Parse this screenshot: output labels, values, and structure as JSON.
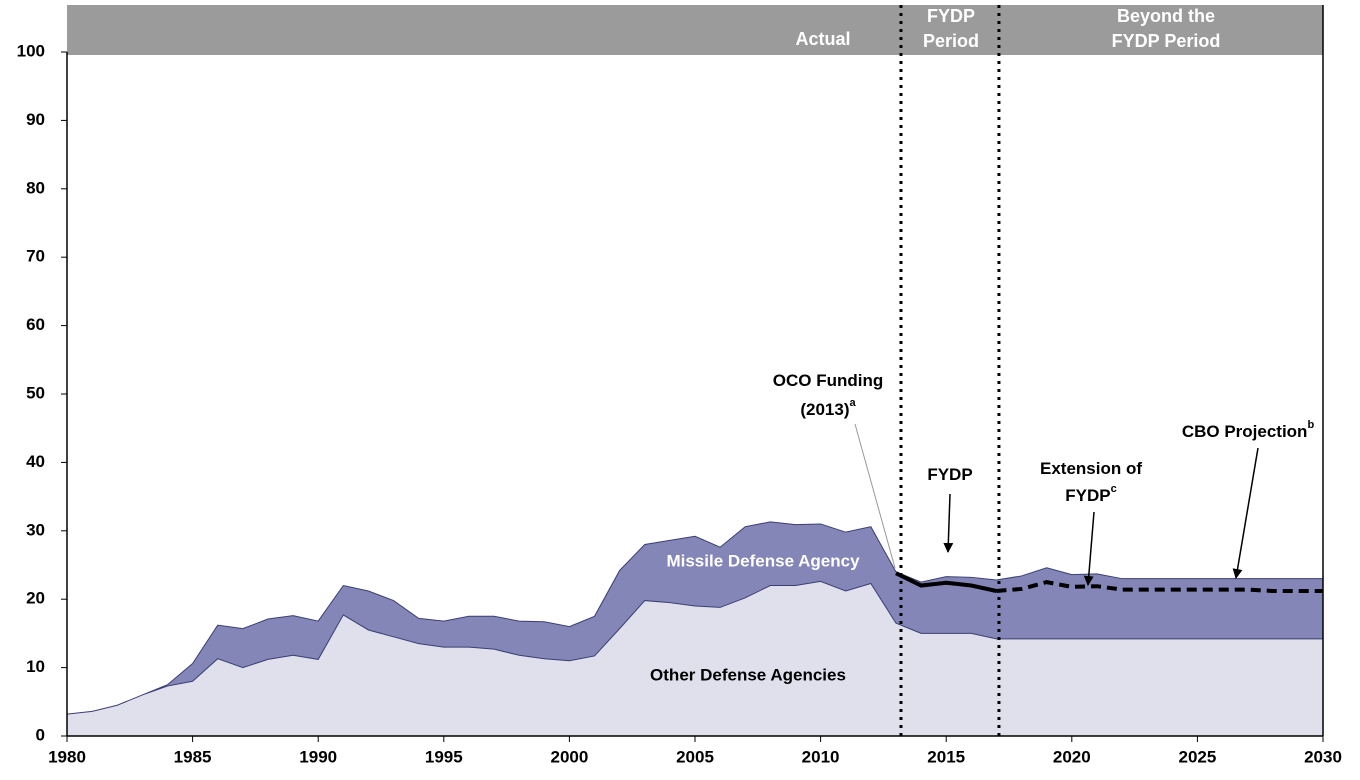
{
  "chart_data": {
    "type": "stacked_area",
    "x": [
      1980,
      1981,
      1982,
      1983,
      1984,
      1985,
      1986,
      1987,
      1988,
      1989,
      1990,
      1991,
      1992,
      1993,
      1994,
      1995,
      1996,
      1997,
      1998,
      1999,
      2000,
      2001,
      2002,
      2003,
      2004,
      2005,
      2006,
      2007,
      2008,
      2009,
      2010,
      2011,
      2012,
      2013,
      2014,
      2015,
      2016,
      2017,
      2018,
      2019,
      2020,
      2021,
      2022,
      2023,
      2024,
      2025,
      2026,
      2027,
      2028,
      2029,
      2030
    ],
    "series": [
      {
        "name": "Other Defense Agencies",
        "color": "#dfe0ec",
        "values": [
          3.2,
          3.6,
          4.5,
          6,
          7.3,
          8,
          11.3,
          10,
          11.2,
          11.8,
          11.2,
          17.7,
          15.5,
          14.5,
          13.5,
          13,
          13,
          12.7,
          11.8,
          11.3,
          11,
          11.7,
          15.7,
          19.8,
          19.5,
          19,
          18.8,
          20.2,
          22,
          22,
          22.6,
          21.2,
          22.3,
          16.5,
          15,
          15,
          15,
          14.2,
          14.2,
          14.2,
          14.2,
          14.2,
          14.2,
          14.2,
          14.2,
          14.2,
          14.2,
          14.2,
          14.2,
          14.2,
          14.2
        ]
      },
      {
        "name": "Missile Defense Agency",
        "color": "#8386b6",
        "values": [
          0,
          0,
          0,
          0,
          0.2,
          2.6,
          4.9,
          5.7,
          5.9,
          5.8,
          5.6,
          4.3,
          5.7,
          5.3,
          3.7,
          3.8,
          4.5,
          4.8,
          5,
          5.4,
          5,
          5.8,
          8.5,
          8.2,
          9.1,
          10.2,
          8.8,
          10.4,
          9.3,
          8.9,
          8.4,
          8.6,
          8.3,
          7.5,
          7.5,
          8.3,
          8.2,
          8.6,
          9.2,
          10.4,
          9.4,
          9.5,
          8.8,
          8.8,
          8.8,
          8.8,
          8.8,
          8.8,
          8.8,
          8.8,
          8.8
        ]
      }
    ],
    "lines": [
      {
        "style": "solid",
        "x": [
          2013,
          2014,
          2015,
          2016,
          2017
        ],
        "values": [
          23.8,
          22,
          22.4,
          22,
          21.2
        ]
      },
      {
        "style": "dashed",
        "x": [
          2017,
          2018,
          2019,
          2020,
          2021,
          2022,
          2023,
          2024,
          2025,
          2026,
          2027,
          2028,
          2029,
          2030
        ],
        "values": [
          21.2,
          21.5,
          22.5,
          21.8,
          21.9,
          21.4,
          21.4,
          21.4,
          21.4,
          21.4,
          21.4,
          21.2,
          21.2,
          21.2
        ]
      }
    ],
    "period_dividers": [
      2013.2,
      2017.1
    ],
    "periods": [
      {
        "lines": [
          "Actual"
        ]
      },
      {
        "lines": [
          "FYDP",
          "Period"
        ]
      },
      {
        "lines": [
          "Beyond the",
          "FYDP Period"
        ]
      }
    ],
    "annotations": [
      {
        "lines": [
          "OCO Funding",
          "(2013)"
        ],
        "sup": "a"
      },
      {
        "lines": [
          "FYDP"
        ]
      },
      {
        "lines": [
          "Extension of",
          "FYDP"
        ],
        "sup": "c"
      },
      {
        "lines": [
          "CBO Projection"
        ],
        "sup": "b"
      }
    ],
    "xlim": [
      1980,
      2030
    ],
    "xticks": [
      1980,
      1985,
      1990,
      1995,
      2000,
      2005,
      2010,
      2015,
      2020,
      2025,
      2030
    ],
    "ylim": [
      0,
      100
    ],
    "yticks": [
      0,
      10,
      20,
      30,
      40,
      50,
      60,
      70,
      80,
      90,
      100
    ]
  }
}
